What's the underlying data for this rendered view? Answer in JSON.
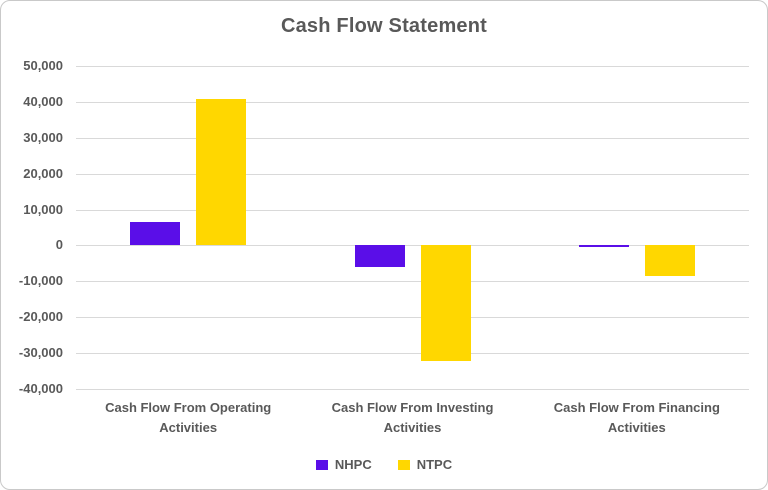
{
  "chart_data": {
    "type": "bar",
    "title": "Cash Flow Statement",
    "categories": [
      "Cash Flow From Operating Activities",
      "Cash Flow From Investing Activities",
      "Cash Flow From Financing Activities"
    ],
    "series": [
      {
        "name": "NHPC",
        "color": "#5A0EE8",
        "values": [
          6600,
          -5900,
          -500
        ]
      },
      {
        "name": "NTPC",
        "color": "#FFD700",
        "values": [
          40800,
          -32100,
          -8400
        ]
      }
    ],
    "ylim": [
      -40000,
      50000
    ],
    "ytick_step": 10000,
    "ytick_labels": [
      "50,000",
      "40,000",
      "30,000",
      "20,000",
      "10,000",
      "0",
      "-10,000",
      "-20,000",
      "-30,000",
      "-40,000"
    ],
    "grid": true,
    "legend_position": "bottom",
    "xlabel": "",
    "ylabel": ""
  },
  "style": {
    "text_color": "#595959",
    "gridline_color": "#D9D9D9",
    "background_color": "#FFFFFF",
    "border_color": "#C9C9C9"
  }
}
